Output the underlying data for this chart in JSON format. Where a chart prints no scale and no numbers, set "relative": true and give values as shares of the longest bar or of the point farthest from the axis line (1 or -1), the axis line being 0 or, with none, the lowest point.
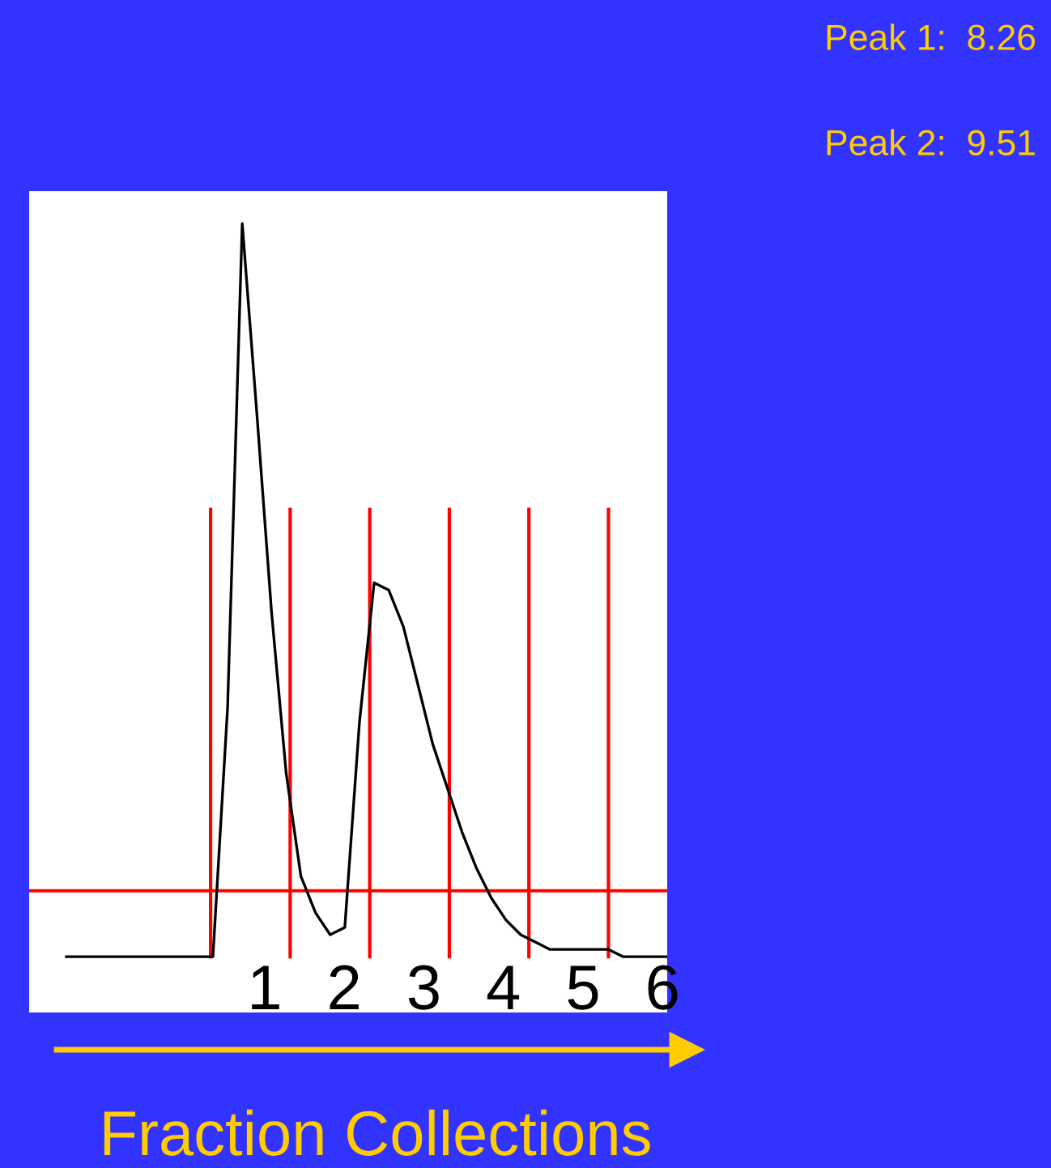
{
  "chart_data": {
    "type": "line",
    "relative": true,
    "xlabel": "Fraction Collections",
    "categories": [
      null,
      null,
      null,
      null,
      null,
      null,
      null,
      null,
      null,
      null,
      null,
      null,
      null,
      null,
      null,
      null,
      null,
      null,
      null,
      null,
      null,
      null,
      null,
      null,
      null,
      null,
      null,
      null,
      null,
      null,
      null,
      null,
      null,
      null,
      null,
      null,
      null,
      null,
      null,
      null,
      null,
      null
    ],
    "series": [
      {
        "color": "#000000",
        "values": [
          0,
          0,
          0,
          0,
          0,
          0,
          0,
          0,
          0,
          0,
          0,
          0.34,
          1.0,
          0.74,
          0.47,
          0.25,
          0.11,
          0.06,
          0.03,
          0.04,
          0.32,
          0.51,
          0.5,
          0.45,
          0.37,
          0.29,
          0.23,
          0.17,
          0.12,
          0.08,
          0.05,
          0.03,
          0.02,
          0.01,
          0.01,
          0.01,
          0.01,
          0.01,
          0,
          0,
          0,
          0
        ]
      }
    ],
    "ref_lines": [
      {
        "axis": "y",
        "value": 0.09,
        "color": "#ff0000"
      }
    ],
    "annotations": [
      "Peak 1:  8.26",
      "Peak 2:  9.51",
      "1",
      "2",
      "3",
      "4",
      "5",
      "6"
    ],
    "grid": false,
    "legend": false,
    "marker": "none",
    "line_style": "solid"
  }
}
